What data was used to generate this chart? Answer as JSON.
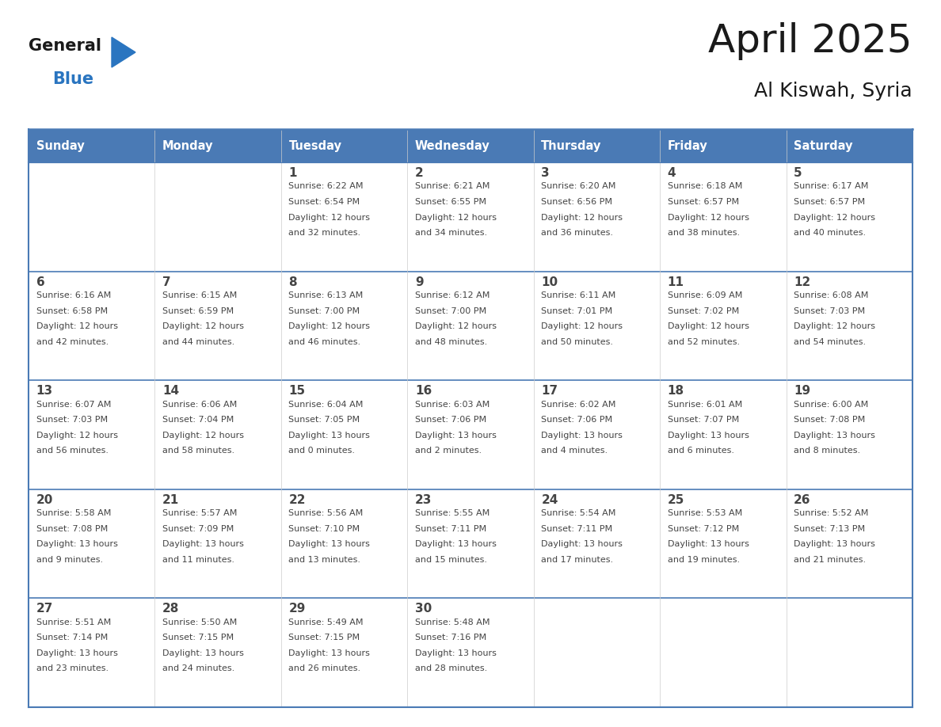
{
  "title": "April 2025",
  "subtitle": "Al Kiswah, Syria",
  "days_of_week": [
    "Sunday",
    "Monday",
    "Tuesday",
    "Wednesday",
    "Thursday",
    "Friday",
    "Saturday"
  ],
  "header_bg": "#4a7ab5",
  "header_text": "#ffffff",
  "cell_bg": "#ffffff",
  "row_sep_color": "#4a7ab5",
  "col_sep_color": "#cccccc",
  "outer_border_color": "#4a7ab5",
  "text_color": "#444444",
  "title_color": "#1a1a1a",
  "logo_general_color": "#1a1a1a",
  "logo_blue_color": "#2a75c0",
  "logo_triangle_color": "#2a75c0",
  "weeks": [
    [
      {
        "day": null,
        "info": null
      },
      {
        "day": null,
        "info": null
      },
      {
        "day": 1,
        "info": "Sunrise: 6:22 AM\nSunset: 6:54 PM\nDaylight: 12 hours\nand 32 minutes."
      },
      {
        "day": 2,
        "info": "Sunrise: 6:21 AM\nSunset: 6:55 PM\nDaylight: 12 hours\nand 34 minutes."
      },
      {
        "day": 3,
        "info": "Sunrise: 6:20 AM\nSunset: 6:56 PM\nDaylight: 12 hours\nand 36 minutes."
      },
      {
        "day": 4,
        "info": "Sunrise: 6:18 AM\nSunset: 6:57 PM\nDaylight: 12 hours\nand 38 minutes."
      },
      {
        "day": 5,
        "info": "Sunrise: 6:17 AM\nSunset: 6:57 PM\nDaylight: 12 hours\nand 40 minutes."
      }
    ],
    [
      {
        "day": 6,
        "info": "Sunrise: 6:16 AM\nSunset: 6:58 PM\nDaylight: 12 hours\nand 42 minutes."
      },
      {
        "day": 7,
        "info": "Sunrise: 6:15 AM\nSunset: 6:59 PM\nDaylight: 12 hours\nand 44 minutes."
      },
      {
        "day": 8,
        "info": "Sunrise: 6:13 AM\nSunset: 7:00 PM\nDaylight: 12 hours\nand 46 minutes."
      },
      {
        "day": 9,
        "info": "Sunrise: 6:12 AM\nSunset: 7:00 PM\nDaylight: 12 hours\nand 48 minutes."
      },
      {
        "day": 10,
        "info": "Sunrise: 6:11 AM\nSunset: 7:01 PM\nDaylight: 12 hours\nand 50 minutes."
      },
      {
        "day": 11,
        "info": "Sunrise: 6:09 AM\nSunset: 7:02 PM\nDaylight: 12 hours\nand 52 minutes."
      },
      {
        "day": 12,
        "info": "Sunrise: 6:08 AM\nSunset: 7:03 PM\nDaylight: 12 hours\nand 54 minutes."
      }
    ],
    [
      {
        "day": 13,
        "info": "Sunrise: 6:07 AM\nSunset: 7:03 PM\nDaylight: 12 hours\nand 56 minutes."
      },
      {
        "day": 14,
        "info": "Sunrise: 6:06 AM\nSunset: 7:04 PM\nDaylight: 12 hours\nand 58 minutes."
      },
      {
        "day": 15,
        "info": "Sunrise: 6:04 AM\nSunset: 7:05 PM\nDaylight: 13 hours\nand 0 minutes."
      },
      {
        "day": 16,
        "info": "Sunrise: 6:03 AM\nSunset: 7:06 PM\nDaylight: 13 hours\nand 2 minutes."
      },
      {
        "day": 17,
        "info": "Sunrise: 6:02 AM\nSunset: 7:06 PM\nDaylight: 13 hours\nand 4 minutes."
      },
      {
        "day": 18,
        "info": "Sunrise: 6:01 AM\nSunset: 7:07 PM\nDaylight: 13 hours\nand 6 minutes."
      },
      {
        "day": 19,
        "info": "Sunrise: 6:00 AM\nSunset: 7:08 PM\nDaylight: 13 hours\nand 8 minutes."
      }
    ],
    [
      {
        "day": 20,
        "info": "Sunrise: 5:58 AM\nSunset: 7:08 PM\nDaylight: 13 hours\nand 9 minutes."
      },
      {
        "day": 21,
        "info": "Sunrise: 5:57 AM\nSunset: 7:09 PM\nDaylight: 13 hours\nand 11 minutes."
      },
      {
        "day": 22,
        "info": "Sunrise: 5:56 AM\nSunset: 7:10 PM\nDaylight: 13 hours\nand 13 minutes."
      },
      {
        "day": 23,
        "info": "Sunrise: 5:55 AM\nSunset: 7:11 PM\nDaylight: 13 hours\nand 15 minutes."
      },
      {
        "day": 24,
        "info": "Sunrise: 5:54 AM\nSunset: 7:11 PM\nDaylight: 13 hours\nand 17 minutes."
      },
      {
        "day": 25,
        "info": "Sunrise: 5:53 AM\nSunset: 7:12 PM\nDaylight: 13 hours\nand 19 minutes."
      },
      {
        "day": 26,
        "info": "Sunrise: 5:52 AM\nSunset: 7:13 PM\nDaylight: 13 hours\nand 21 minutes."
      }
    ],
    [
      {
        "day": 27,
        "info": "Sunrise: 5:51 AM\nSunset: 7:14 PM\nDaylight: 13 hours\nand 23 minutes."
      },
      {
        "day": 28,
        "info": "Sunrise: 5:50 AM\nSunset: 7:15 PM\nDaylight: 13 hours\nand 24 minutes."
      },
      {
        "day": 29,
        "info": "Sunrise: 5:49 AM\nSunset: 7:15 PM\nDaylight: 13 hours\nand 26 minutes."
      },
      {
        "day": 30,
        "info": "Sunrise: 5:48 AM\nSunset: 7:16 PM\nDaylight: 13 hours\nand 28 minutes."
      },
      {
        "day": null,
        "info": null
      },
      {
        "day": null,
        "info": null
      },
      {
        "day": null,
        "info": null
      }
    ]
  ]
}
